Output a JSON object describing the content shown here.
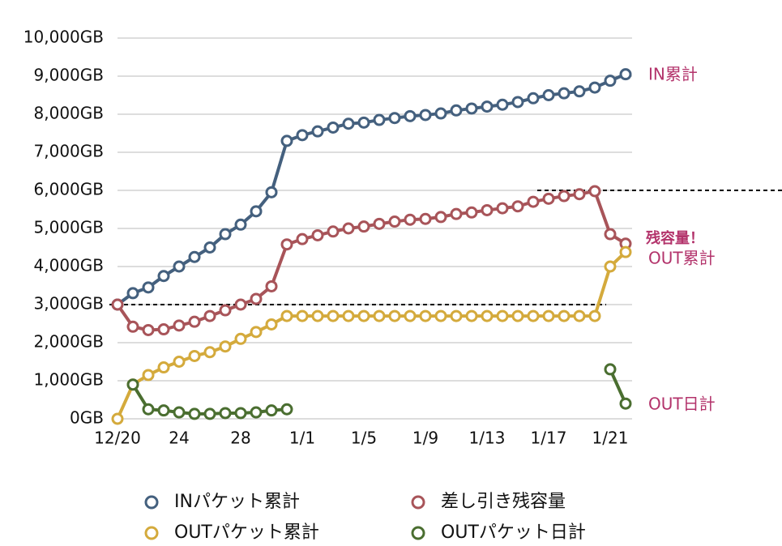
{
  "chart_data": {
    "type": "line",
    "categories": [
      "12/20",
      null,
      null,
      null,
      "24",
      null,
      null,
      null,
      "28",
      null,
      null,
      null,
      "1/1",
      null,
      null,
      null,
      "1/5",
      null,
      null,
      null,
      "1/9",
      null,
      null,
      null,
      "1/13",
      null,
      null,
      null,
      "1/17",
      null,
      null,
      null,
      "1/21",
      null
    ],
    "series": [
      {
        "name": "INパケット累計",
        "color": "#44607e",
        "values": [
          3000,
          3300,
          3450,
          3750,
          4000,
          4250,
          4500,
          4850,
          5100,
          5450,
          5950,
          7300,
          7450,
          7550,
          7650,
          7750,
          7780,
          7850,
          7900,
          7950,
          7980,
          8020,
          8100,
          8150,
          8200,
          8250,
          8320,
          8420,
          8500,
          8550,
          8600,
          8700,
          8880,
          9050
        ]
      },
      {
        "name": "差し引き残容量",
        "color": "#a85459",
        "values": [
          3000,
          2420,
          2330,
          2350,
          2450,
          2550,
          2700,
          2850,
          3000,
          3150,
          3480,
          4580,
          4720,
          4820,
          4920,
          5000,
          5050,
          5120,
          5180,
          5230,
          5250,
          5300,
          5380,
          5420,
          5480,
          5530,
          5580,
          5700,
          5780,
          5850,
          5900,
          5980,
          4850,
          4600
        ]
      },
      {
        "name": "OUTパケット累計",
        "color": "#d4aa3c",
        "values": [
          0,
          900,
          1150,
          1350,
          1500,
          1650,
          1750,
          1900,
          2100,
          2280,
          2480,
          2700,
          2700,
          2700,
          2700,
          2700,
          2700,
          2700,
          2700,
          2700,
          2700,
          2700,
          2700,
          2700,
          2700,
          2700,
          2700,
          2700,
          2700,
          2700,
          2700,
          2700,
          4000,
          4380
        ]
      },
      {
        "name": "OUTパケット日計",
        "color": "#4a6e30",
        "values": [
          null,
          900,
          250,
          220,
          170,
          130,
          130,
          150,
          150,
          170,
          220,
          250,
          null,
          null,
          null,
          null,
          null,
          null,
          null,
          null,
          null,
          null,
          null,
          null,
          null,
          null,
          null,
          null,
          null,
          null,
          null,
          null,
          1300,
          400
        ]
      }
    ],
    "ylim": [
      0,
      10000
    ],
    "yticks": [
      {
        "value": 0,
        "label": "0GB"
      },
      {
        "value": 1000,
        "label": "1,000GB"
      },
      {
        "value": 2000,
        "label": "2,000GB"
      },
      {
        "value": 3000,
        "label": "3,000GB"
      },
      {
        "value": 4000,
        "label": "4,000GB"
      },
      {
        "value": 5000,
        "label": "5,000GB"
      },
      {
        "value": 6000,
        "label": "6,000GB"
      },
      {
        "value": 7000,
        "label": "7,000GB"
      },
      {
        "value": 8000,
        "label": "8,000GB"
      },
      {
        "value": 9000,
        "label": "9,000GB"
      },
      {
        "value": 10000,
        "label": "10,000GB"
      }
    ],
    "grid": true,
    "reference_lines": [
      3000,
      6000
    ],
    "annotations": [
      "IN累計",
      "残容量！",
      "OUT累計",
      "OUT日計"
    ]
  }
}
